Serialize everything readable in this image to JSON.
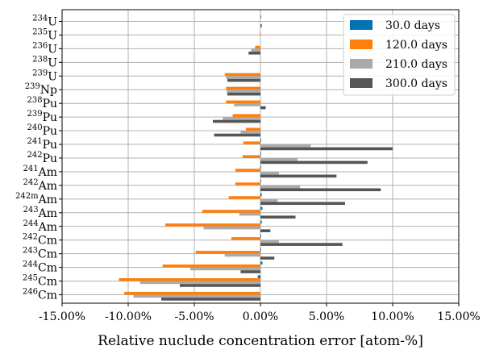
{
  "chart_data": {
    "type": "bar",
    "orientation": "horizontal",
    "title": "",
    "xlabel": "Relative nuclude concentration error [atom-%]",
    "ylabel": "",
    "xlim": [
      -15,
      15
    ],
    "x_ticks": [
      "-15.00%",
      "-10.00%",
      "-5.00%",
      "0.00%",
      "5.00%",
      "10.00%",
      "15.00%"
    ],
    "x_tick_values": [
      -15,
      -10,
      -5,
      0,
      5,
      10,
      15
    ],
    "grid": true,
    "legend_position": "top-right",
    "categories": [
      {
        "sup": "234",
        "base": "U"
      },
      {
        "sup": "235",
        "base": "U"
      },
      {
        "sup": "236",
        "base": "U"
      },
      {
        "sup": "238",
        "base": "U"
      },
      {
        "sup": "239",
        "base": "U"
      },
      {
        "sup": "239",
        "base": "Np"
      },
      {
        "sup": "238",
        "base": "Pu"
      },
      {
        "sup": "239",
        "base": "Pu"
      },
      {
        "sup": "240",
        "base": "Pu"
      },
      {
        "sup": "241",
        "base": "Pu"
      },
      {
        "sup": "242",
        "base": "Pu"
      },
      {
        "sup": "241",
        "base": "Am"
      },
      {
        "sup": "242",
        "base": "Am"
      },
      {
        "sup": "242m",
        "base": "Am"
      },
      {
        "sup": "243",
        "base": "Am"
      },
      {
        "sup": "244",
        "base": "Am"
      },
      {
        "sup": "242",
        "base": "Cm"
      },
      {
        "sup": "243",
        "base": "Cm"
      },
      {
        "sup": "244",
        "base": "Cm"
      },
      {
        "sup": "245",
        "base": "Cm"
      },
      {
        "sup": "246",
        "base": "Cm"
      }
    ],
    "series": [
      {
        "name": "30.0 days",
        "color": "#0072B2",
        "values": [
          0.05,
          0.0,
          0.0,
          0.0,
          0.0,
          0.0,
          0.0,
          0.0,
          0.0,
          0.05,
          0.05,
          0.05,
          0.05,
          0.1,
          0.15,
          0.1,
          0.05,
          0.05,
          0.15,
          -0.2,
          0.0
        ]
      },
      {
        "name": "120.0 days",
        "color": "#FF7F0E",
        "values": [
          0.0,
          -0.05,
          -0.4,
          0.0,
          -2.7,
          -2.6,
          -2.6,
          -2.1,
          -1.1,
          -1.3,
          -1.35,
          -1.9,
          -1.9,
          -2.4,
          -4.4,
          -7.2,
          -2.2,
          -4.9,
          -7.4,
          -10.7,
          -10.3
        ]
      },
      {
        "name": "210.0 days",
        "color": "#AAAAAA",
        "values": [
          0.0,
          0.0,
          -0.7,
          0.0,
          -2.6,
          -2.55,
          -2.0,
          -2.85,
          -1.5,
          3.8,
          2.8,
          1.4,
          3.0,
          1.3,
          -1.6,
          -4.3,
          1.4,
          -2.7,
          -5.3,
          -9.1,
          -9.6
        ]
      },
      {
        "name": "300.0 days",
        "color": "#555555",
        "values": [
          0.1,
          0.0,
          -0.9,
          0.0,
          -2.5,
          -2.5,
          0.4,
          -3.6,
          -3.5,
          10.0,
          8.1,
          5.75,
          9.1,
          6.4,
          2.65,
          0.75,
          6.2,
          1.05,
          -1.5,
          -6.1,
          -7.5
        ]
      }
    ]
  }
}
